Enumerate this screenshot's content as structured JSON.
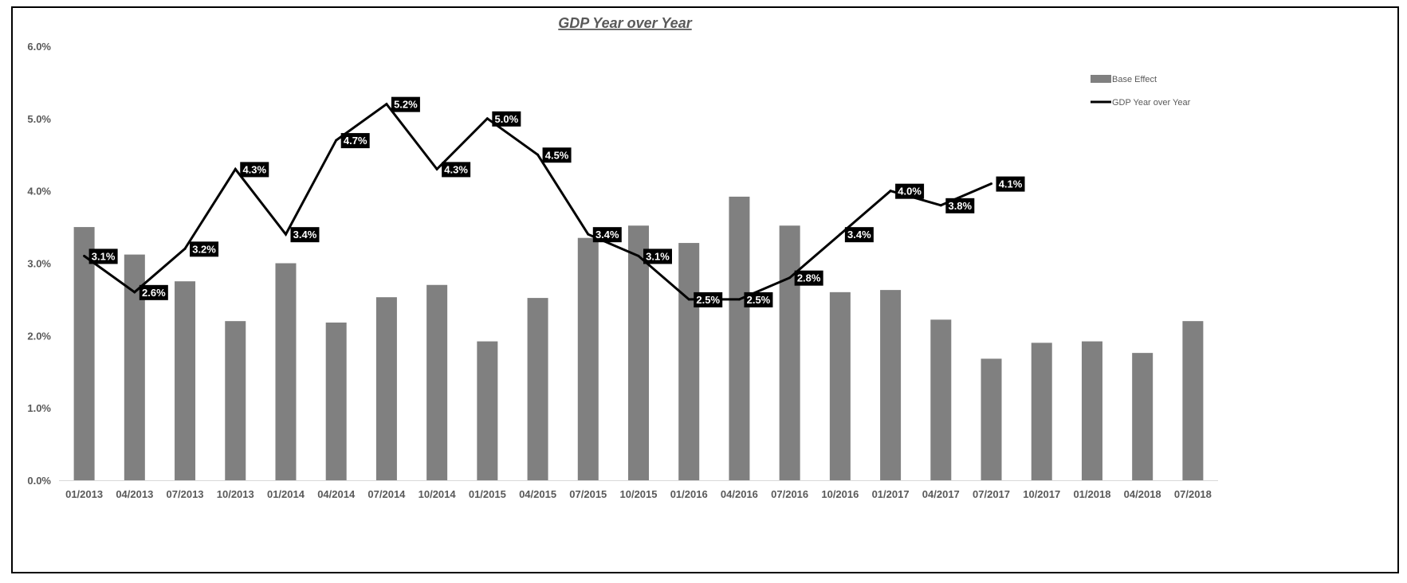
{
  "chart_data": {
    "type": "bar",
    "title": "GDP Year over Year",
    "categories": [
      "01/2013",
      "04/2013",
      "07/2013",
      "10/2013",
      "01/2014",
      "04/2014",
      "07/2014",
      "10/2014",
      "01/2015",
      "04/2015",
      "07/2015",
      "10/2015",
      "01/2016",
      "04/2016",
      "07/2016",
      "10/2016",
      "01/2017",
      "04/2017",
      "07/2017",
      "10/2017",
      "01/2018",
      "04/2018",
      "07/2018"
    ],
    "y_ticks": [
      "0.0%",
      "1.0%",
      "2.0%",
      "3.0%",
      "4.0%",
      "5.0%",
      "6.0%"
    ],
    "ylim": [
      0,
      6
    ],
    "grid": false,
    "legend_position": "top-right",
    "colors": {
      "bar": "#808080",
      "line": "#000000",
      "label_bg": "#000000",
      "label_text": "#ffffff",
      "axis_text": "#595959"
    },
    "series": [
      {
        "name": "Base Effect",
        "type": "bar",
        "values": [
          3.5,
          3.12,
          2.75,
          2.2,
          3.0,
          2.18,
          2.53,
          2.7,
          1.92,
          2.52,
          3.35,
          3.52,
          3.28,
          3.92,
          3.52,
          2.6,
          2.63,
          2.22,
          1.68,
          1.9,
          1.92,
          1.76,
          2.2
        ]
      },
      {
        "name": "GDP Year over Year",
        "type": "line",
        "values": [
          3.1,
          2.6,
          3.2,
          4.3,
          3.4,
          4.7,
          5.2,
          4.3,
          5.0,
          4.5,
          3.4,
          3.1,
          2.5,
          2.5,
          2.8,
          3.4,
          4.0,
          3.8,
          4.1,
          null,
          null,
          null,
          null
        ],
        "labels": [
          "3.1%",
          "2.6%",
          "3.2%",
          "4.3%",
          "3.4%",
          "4.7%",
          "5.2%",
          "4.3%",
          "5.0%",
          "4.5%",
          "3.4%",
          "3.1%",
          "2.5%",
          "2.5%",
          "2.8%",
          "3.4%",
          "4.0%",
          "3.8%",
          "4.1%",
          null,
          null,
          null,
          null
        ]
      }
    ]
  }
}
